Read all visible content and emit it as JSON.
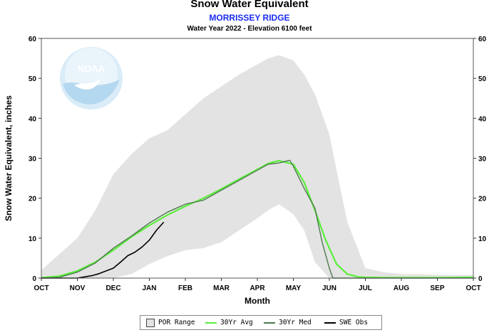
{
  "chart_data": {
    "type": "area",
    "title": "Snow Water Equivalent",
    "subtitle": "MORRISSEY RIDGE",
    "subtitle2": "Water Year 2022 -  Elevation 6100 feet",
    "xlabel": "Month",
    "ylabel": "Snow Water Equivalent, inches",
    "ylim": [
      0,
      60
    ],
    "yticks": [
      0,
      10,
      20,
      30,
      40,
      50,
      60
    ],
    "months": [
      "OCT",
      "NOV",
      "DEC",
      "JAN",
      "FEB",
      "MAR",
      "APR",
      "MAY",
      "JUN",
      "JUL",
      "AUG",
      "SEP",
      "OCT"
    ],
    "x_unit": "months since Oct 1",
    "grid": false,
    "legend_position": "bottom",
    "watermark": "NOAA",
    "colors": {
      "por_fill": "#e3e3e3",
      "avg": "#5aee3a",
      "med": "#4d7a4d",
      "obs": "#000000"
    },
    "por_range": {
      "x": [
        0,
        0.5,
        1.0,
        1.5,
        2.0,
        2.5,
        3.0,
        3.5,
        4.0,
        4.5,
        5.0,
        5.5,
        6.0,
        6.3,
        6.6,
        7.0,
        7.3,
        7.6,
        8.0,
        8.2,
        8.5,
        9.0,
        9.5,
        10,
        10.5,
        11,
        11.5,
        12
      ],
      "upper": [
        2.0,
        6.0,
        10,
        17,
        26,
        31,
        35,
        37,
        41,
        45,
        48,
        51,
        53.5,
        55,
        55.8,
        54.5,
        51,
        46,
        36,
        27,
        14,
        2.5,
        1.5,
        1.0,
        1.0,
        0.8,
        0.8,
        0.8
      ],
      "lower": [
        0,
        0,
        0,
        0,
        0,
        1,
        3.5,
        5.5,
        7.0,
        7.5,
        9.0,
        12,
        15,
        17,
        18.5,
        16,
        12,
        4,
        0,
        0,
        0,
        0,
        0,
        0,
        0,
        0,
        0,
        0
      ]
    },
    "series": [
      {
        "name": "30Yr Avg",
        "x": [
          0,
          0.5,
          1.0,
          1.5,
          2.0,
          2.5,
          3.0,
          3.5,
          4.0,
          4.5,
          5.0,
          5.5,
          6.0,
          6.3,
          6.6,
          7.0,
          7.3,
          7.6,
          7.9,
          8.2,
          8.5,
          8.8,
          9.0,
          9.5,
          10,
          11,
          12
        ],
        "values": [
          0.1,
          0.5,
          1.8,
          4.0,
          7.0,
          10.3,
          13.2,
          15.8,
          18.0,
          20.0,
          22.3,
          24.8,
          27.2,
          28.7,
          29.4,
          28.5,
          24.0,
          17.0,
          9.5,
          3.5,
          1.0,
          0.3,
          0.2,
          0.1,
          0.1,
          0.1,
          0.2
        ]
      },
      {
        "name": "30Yr Med",
        "x": [
          0,
          0.5,
          1.0,
          1.5,
          2.0,
          2.5,
          3.0,
          3.5,
          4.0,
          4.5,
          5.0,
          5.5,
          6.0,
          6.3,
          6.6,
          6.9,
          7.0,
          7.3,
          7.6,
          7.8,
          8.0,
          8.1,
          8.3,
          9.0,
          10,
          11,
          12
        ],
        "values": [
          0,
          0.2,
          1.5,
          3.8,
          7.5,
          10.5,
          13.8,
          16.5,
          18.5,
          19.5,
          22.0,
          24.5,
          27.0,
          28.5,
          28.8,
          29.5,
          28.0,
          22.5,
          17.5,
          9.0,
          2.5,
          0,
          0,
          0,
          0,
          0,
          0
        ]
      },
      {
        "name": "SWE Obs",
        "x": [
          0,
          1.0,
          1.2,
          1.4,
          1.6,
          1.8,
          2.0,
          2.2,
          2.4,
          2.6,
          2.8,
          3.0,
          3.2,
          3.4
        ],
        "values": [
          0,
          0,
          0.3,
          0.6,
          1.1,
          1.8,
          2.5,
          4.0,
          5.6,
          6.5,
          7.8,
          9.5,
          12.0,
          14.0
        ]
      }
    ],
    "legend": [
      {
        "label": "POR Range",
        "kind": "box"
      },
      {
        "label": "30Yr Avg",
        "kind": "line",
        "color": "#5aee3a"
      },
      {
        "label": "30Yr Med",
        "kind": "line",
        "color": "#4d7a4d"
      },
      {
        "label": "SWE Obs",
        "kind": "line",
        "color": "#000000"
      }
    ]
  }
}
